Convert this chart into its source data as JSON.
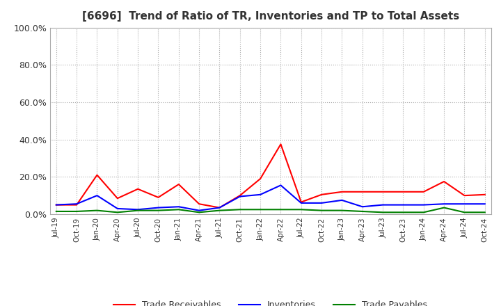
{
  "title": "[6696]  Trend of Ratio of TR, Inventories and TP to Total Assets",
  "x_labels": [
    "Jul-19",
    "Oct-19",
    "Jan-20",
    "Apr-20",
    "Jul-20",
    "Oct-20",
    "Jan-21",
    "Apr-21",
    "Jul-21",
    "Oct-21",
    "Jan-22",
    "Apr-22",
    "Jul-22",
    "Oct-22",
    "Jan-23",
    "Apr-23",
    "Jul-23",
    "Oct-23",
    "Jan-24",
    "Apr-24",
    "Jul-24",
    "Oct-24"
  ],
  "trade_receivables": [
    0.05,
    0.05,
    0.21,
    0.085,
    0.135,
    0.09,
    0.16,
    0.055,
    0.035,
    0.1,
    0.19,
    0.375,
    0.065,
    0.105,
    0.12,
    0.12,
    0.12,
    0.12,
    0.12,
    0.175,
    0.1,
    0.105
  ],
  "inventories": [
    0.05,
    0.055,
    0.1,
    0.03,
    0.025,
    0.035,
    0.04,
    0.02,
    0.035,
    0.095,
    0.105,
    0.155,
    0.06,
    0.06,
    0.075,
    0.04,
    0.05,
    0.05,
    0.05,
    0.055,
    0.055,
    0.055
  ],
  "trade_payables": [
    0.015,
    0.015,
    0.02,
    0.01,
    0.02,
    0.02,
    0.025,
    0.01,
    0.02,
    0.025,
    0.025,
    0.025,
    0.025,
    0.02,
    0.02,
    0.015,
    0.01,
    0.01,
    0.01,
    0.035,
    0.01,
    0.01
  ],
  "ylim": [
    0.0,
    1.0
  ],
  "yticks": [
    0.0,
    0.2,
    0.4,
    0.6,
    0.8,
    1.0
  ],
  "line_colors": {
    "trade_receivables": "#FF0000",
    "inventories": "#0000FF",
    "trade_payables": "#008000"
  },
  "legend_labels": [
    "Trade Receivables",
    "Inventories",
    "Trade Payables"
  ],
  "background_color": "#FFFFFF",
  "grid_color": "#AAAAAA"
}
